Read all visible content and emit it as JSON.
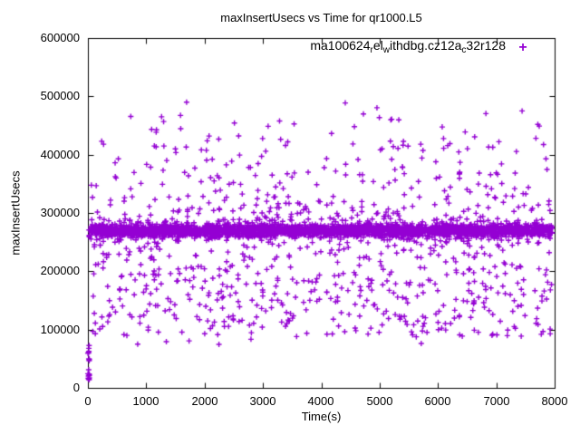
{
  "page": {
    "background": "#ffffff",
    "frame_color": "#000000",
    "text_color": "#000000"
  },
  "chart_data": {
    "type": "scatter",
    "title": "maxInsertUsecs vs Time for qr1000.L5",
    "xlabel": "Time(s)",
    "ylabel": "maxInsertUsecs",
    "xlim": [
      0,
      8000
    ],
    "ylim": [
      0,
      600000
    ],
    "grid": false,
    "legend_position": "top-right-inside",
    "xticks": {
      "values": [
        0,
        1000,
        2000,
        3000,
        4000,
        5000,
        6000,
        7000,
        8000
      ],
      "labels": [
        "0",
        "1000",
        "2000",
        "3000",
        "4000",
        "5000",
        "6000",
        "7000",
        "8000"
      ]
    },
    "yticks": {
      "values": [
        600000,
        500000,
        400000,
        300000,
        200000,
        100000,
        0
      ],
      "labels": [
        "600000",
        "500000",
        "400000",
        "300000",
        "200000",
        "100000",
        "0"
      ]
    },
    "series": [
      {
        "name": "ma100624_rel_withdbg.cz12a_c32r128",
        "legend_marker_glyph": "+",
        "legend_segments": [
          {
            "text": "ma100624",
            "sub": false
          },
          {
            "text": "r",
            "sub": true
          },
          {
            "text": "el",
            "sub": false
          },
          {
            "text": "w",
            "sub": true
          },
          {
            "text": "ithdbg.cz12a",
            "sub": false
          },
          {
            "text": "c",
            "sub": true
          },
          {
            "text": "32r128",
            "sub": false
          }
        ],
        "marker": "plus",
        "color": "#9400D3",
        "points_spec": {
          "comment": "Approx. reconstruction of ~3800 samples: dense horizontal band near y=270000 over full time range, uniform mid scatter 90k-256k, decaying upper scatter to ~490k, startup stack of low values near t=0.",
          "seed": 1337,
          "components": [
            {
              "name": "dense-band",
              "count": 2600,
              "x": {
                "type": "uniform",
                "min": 15,
                "max": 7960
              },
              "y": {
                "type": "normal",
                "mean": 270000,
                "std": 5500
              }
            },
            {
              "name": "band-fringe",
              "count": 260,
              "x": {
                "type": "uniform",
                "min": 15,
                "max": 7960
              },
              "y": {
                "type": "normal",
                "mean": 270000,
                "std": 13000
              }
            },
            {
              "name": "mid-scatter",
              "count": 480,
              "x": {
                "type": "uniform",
                "min": 15,
                "max": 7960
              },
              "y": {
                "type": "uniform",
                "min": 88000,
                "max": 256000
              }
            },
            {
              "name": "low-tail",
              "count": 7,
              "x": {
                "type": "uniform",
                "min": 400,
                "max": 7600
              },
              "y": {
                "type": "uniform",
                "min": 74000,
                "max": 88000
              }
            },
            {
              "name": "upper-a",
              "count": 130,
              "x": {
                "type": "uniform",
                "min": 50,
                "max": 7950
              },
              "y": {
                "type": "uniform",
                "min": 286000,
                "max": 330000
              }
            },
            {
              "name": "upper-b",
              "count": 85,
              "x": {
                "type": "uniform",
                "min": 50,
                "max": 7950
              },
              "y": {
                "type": "uniform",
                "min": 330000,
                "max": 385000
              }
            },
            {
              "name": "upper-c",
              "count": 55,
              "x": {
                "type": "uniform",
                "min": 50,
                "max": 7950
              },
              "y": {
                "type": "uniform",
                "min": 385000,
                "max": 430000
              }
            },
            {
              "name": "upper-d",
              "count": 25,
              "x": {
                "type": "uniform",
                "min": 100,
                "max": 7900
              },
              "y": {
                "type": "uniform",
                "min": 430000,
                "max": 468000
              }
            },
            {
              "name": "upper-e",
              "count": 6,
              "x": {
                "type": "uniform",
                "min": 300,
                "max": 7500
              },
              "y": {
                "type": "uniform",
                "min": 468000,
                "max": 493000
              }
            },
            {
              "name": "startup-stack",
              "count": 22,
              "x": {
                "type": "uniform",
                "min": 0,
                "max": 25
              },
              "y": {
                "type": "uniform",
                "min": 13000,
                "max": 75000
              }
            }
          ]
        }
      }
    ]
  }
}
